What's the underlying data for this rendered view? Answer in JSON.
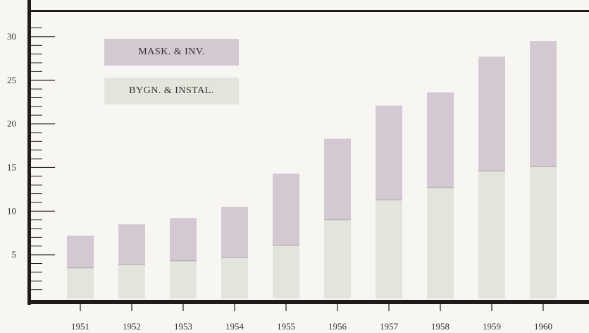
{
  "chart_data": {
    "type": "bar",
    "stacked": true,
    "categories": [
      "1951",
      "1952",
      "1953",
      "1954",
      "1955",
      "1956",
      "1957",
      "1958",
      "1959",
      "1960"
    ],
    "series": [
      {
        "name": "BYGN. & INSTAL.",
        "values": [
          3.5,
          3.9,
          4.3,
          4.7,
          6.1,
          9.0,
          11.3,
          12.7,
          14.6,
          15.1
        ],
        "color": "#e3e5dd"
      },
      {
        "name": "MASK. & INV.",
        "values": [
          3.7,
          4.6,
          4.9,
          5.8,
          8.2,
          9.3,
          10.8,
          10.9,
          13.1,
          14.4
        ],
        "color": "#d4c8d2"
      }
    ],
    "ylim": [
      0,
      32
    ],
    "yticks": [
      5,
      10,
      15,
      20,
      25,
      30
    ],
    "ytick_labels": [
      "5",
      "10",
      "15",
      "20",
      "25",
      "30"
    ],
    "grid": false,
    "legend_position": "top-left"
  },
  "legend": {
    "mask_label": "MASK. & INV.",
    "bygn_label": "BYGN. & INSTAL."
  },
  "colors": {
    "axis": "#1e1b18",
    "mask": "#d4c8d2",
    "bygn": "#e3e5dd",
    "text": "#333333"
  }
}
